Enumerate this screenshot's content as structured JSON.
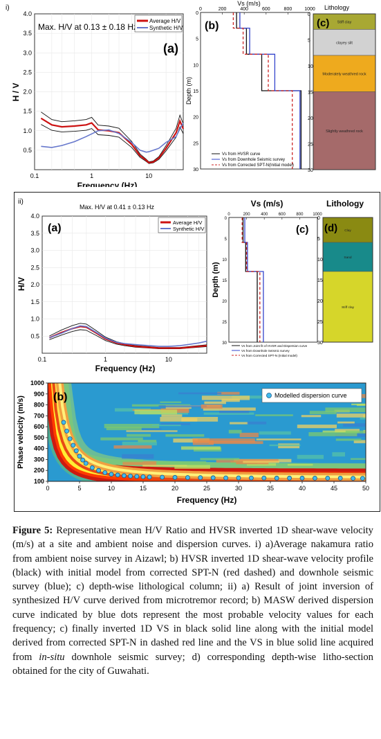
{
  "panel_i": {
    "tag": "i)",
    "hv": {
      "title": "Max. H/V at 0.13 ± 0.18 Hz",
      "letter": "(a)",
      "ylabel": "H / V",
      "xlabel": "Frequency (Hz)",
      "yticks": [
        "0.5",
        "1.0",
        "1.5",
        "2.0",
        "2.5",
        "3.0",
        "3.5",
        "4.0"
      ],
      "xticks": [
        "0.1",
        "1",
        "10"
      ],
      "legend": [
        "Average H/V",
        "Synthetic H/V"
      ]
    },
    "vs": {
      "letter": "(b)",
      "xtitle": "Vs (m/s)",
      "xticks": [
        "0",
        "200",
        "400",
        "600",
        "800",
        "1000"
      ],
      "ylabel": "Depth (m)",
      "yticks": [
        "0",
        "5",
        "10",
        "15",
        "20",
        "25",
        "30"
      ],
      "legend": [
        "Vs from HVSR curve",
        "Vs from Downhole Seismic survey",
        "Vs from Corrected SPT-N(Initial model)"
      ]
    },
    "litho": {
      "title": "Lithology",
      "letter": "(c)",
      "yticks": [
        "0",
        "5",
        "10",
        "15",
        "20",
        "25",
        "30"
      ],
      "layers": [
        {
          "label": "Stiff clay",
          "top": 0,
          "bottom": 3,
          "color": "#a8a833"
        },
        {
          "label": "clayey silt",
          "top": 3,
          "bottom": 8,
          "color": "#d2d2d2"
        },
        {
          "label": "Moderately weathred rock",
          "top": 8,
          "bottom": 15,
          "color": "#eeaa1e"
        },
        {
          "label": "Slightly weathred rock",
          "top": 15,
          "bottom": 30,
          "color": "#a56a6a"
        }
      ]
    }
  },
  "panel_ii": {
    "tag": "ii)",
    "hv": {
      "title": "Max. H/V at 0.41 ± 0.13 Hz",
      "letter": "(a)",
      "ylabel": "H/V",
      "xlabel": "Frequency (Hz)",
      "yticks": [
        "0.5",
        "1.0",
        "1.5",
        "2.0",
        "2.5",
        "3.0",
        "3.5",
        "4.0"
      ],
      "xticks": [
        "0.1",
        "1",
        "10"
      ],
      "legend": [
        "Average H/V",
        "Synthetic H/V"
      ]
    },
    "vs": {
      "letter": "(c)",
      "xtitle": "Vs (m/s)",
      "xticks": [
        "0",
        "200",
        "400",
        "600",
        "800",
        "1000"
      ],
      "ylabel": "Depth (m)",
      "yticks": [
        "0",
        "5",
        "10",
        "15",
        "20",
        "25",
        "30"
      ],
      "legend": [
        "Vs from Joint fit of HVSR and Dispersion curve",
        "Vs from Downhole Seismic survey",
        "Vs from Corrected SPT-N (Initial model)"
      ]
    },
    "litho": {
      "title": "Lithology",
      "letter": "(d)",
      "yticks": [
        "0",
        "5",
        "10",
        "15",
        "20",
        "25",
        "30"
      ],
      "layers": [
        {
          "label": "Clay",
          "top": 0,
          "bottom": 6,
          "color": "#8a8a12"
        },
        {
          "label": "Sand",
          "top": 6,
          "bottom": 13,
          "color": "#188a8a"
        },
        {
          "label": "Stiff clay",
          "top": 13,
          "bottom": 30,
          "color": "#d6d62a"
        }
      ]
    },
    "disp": {
      "letter": "(b)",
      "ylabel": "Phase velocity (m/s)",
      "xlabel": "Frequency (Hz)",
      "yticks": [
        "100",
        "200",
        "300",
        "400",
        "500",
        "600",
        "700",
        "800",
        "900",
        "1000"
      ],
      "xticks": [
        "0",
        "5",
        "10",
        "15",
        "20",
        "25",
        "30",
        "35",
        "40",
        "45",
        "50"
      ],
      "legend": "Modelled dispersion curve"
    }
  },
  "caption": {
    "label": "Figure 5:",
    "text1": " Representative mean H/V Ratio and HVSR inverted 1D shear-wave velocity (m/s) at a site and ambient noise and dispersion curves. i) a)Average nakamura ratio from ambient noise survey in Aizawl; b) HVSR inverted 1D shear-wave velocity profile (black) with initial model from corrected SPT-N (red dashed) and downhole seismic survey (blue); c) depth-wise lithological column; ii) a) Result of joint inversion of synthesized H/V curve derived from microtremor record; b) MASW derived dispersion curve indicated by blue dots represent the most probable velocity values for each frequency; c) finally inverted 1D VS in black solid line along with the initial model derived from corrected SPT-N in dashed red line and the VS in blue solid line acquired from ",
    "italic": "in-situ",
    "text2": " downhole seismic survey; d) corresponding depth-wise litho-section obtained for the city of Guwahati."
  },
  "chart_data": [
    {
      "type": "line",
      "ylabel": "H / V",
      "xlabel": "Frequency (Hz)",
      "ylim": [
        0,
        4
      ],
      "xlim": [
        0.1,
        40
      ],
      "xscale": "log",
      "series": [
        {
          "name": "Average H/V",
          "color": "#cc1111",
          "x": [
            0.13,
            0.2,
            0.3,
            0.5,
            0.8,
            1,
            1.3,
            2,
            3,
            5,
            7,
            9,
            10,
            12,
            15,
            20,
            30,
            35,
            40
          ],
          "values": [
            1.32,
            1.15,
            1.1,
            1.12,
            1.15,
            1.2,
            1.02,
            1.0,
            0.95,
            0.65,
            0.36,
            0.24,
            0.18,
            0.2,
            0.3,
            0.55,
            0.95,
            1.25,
            1.05
          ]
        },
        {
          "name": "Synthetic H/V",
          "color": "#6677cc",
          "x": [
            0.13,
            0.2,
            0.3,
            0.5,
            0.8,
            1,
            1.3,
            2,
            3,
            5,
            7,
            9,
            10,
            12,
            15,
            20,
            30,
            35,
            40
          ],
          "values": [
            0.6,
            0.57,
            0.62,
            0.72,
            0.85,
            0.92,
            1.0,
            1.02,
            0.93,
            0.7,
            0.5,
            0.45,
            0.46,
            0.5,
            0.55,
            0.7,
            0.85,
            1.05,
            1.2
          ]
        }
      ]
    },
    {
      "type": "line",
      "xlabel": "Vs (m/s)",
      "ylabel": "Depth (m)",
      "xlim": [
        0,
        1000
      ],
      "ylim": [
        30,
        0
      ],
      "series": [
        {
          "name": "Vs from HVSR curve",
          "color": "#111111",
          "steps": [
            [
              330,
              0
            ],
            [
              330,
              3
            ],
            [
              420,
              3
            ],
            [
              420,
              8
            ],
            [
              560,
              8
            ],
            [
              560,
              15
            ],
            [
              920,
              15
            ],
            [
              920,
              30
            ]
          ]
        },
        {
          "name": "Vs from Downhole Seismic survey",
          "color": "#3344cc",
          "steps": [
            [
              360,
              0
            ],
            [
              360,
              3
            ],
            [
              450,
              3
            ],
            [
              450,
              8
            ],
            [
              680,
              8
            ],
            [
              680,
              15
            ],
            [
              910,
              15
            ],
            [
              910,
              30
            ]
          ]
        },
        {
          "name": "Vs from Corrected SPT-N(Initial model)",
          "color": "#cc2222",
          "steps": [
            [
              300,
              0
            ],
            [
              300,
              3
            ],
            [
              390,
              3
            ],
            [
              390,
              8
            ],
            [
              620,
              8
            ],
            [
              620,
              15
            ],
            [
              840,
              15
            ],
            [
              840,
              30
            ]
          ]
        }
      ]
    },
    {
      "type": "line",
      "xlabel": "Frequency (Hz)",
      "ylabel": "H/V",
      "ylim": [
        0,
        4
      ],
      "xlim": [
        0.1,
        40
      ],
      "xscale": "log",
      "series": [
        {
          "name": "Average H/V",
          "color": "#cc1111",
          "x": [
            0.13,
            0.2,
            0.3,
            0.4,
            0.5,
            0.7,
            1,
            1.5,
            2,
            3,
            5,
            7,
            10,
            15,
            20,
            30,
            40
          ],
          "values": [
            0.45,
            0.6,
            0.72,
            0.78,
            0.76,
            0.6,
            0.42,
            0.3,
            0.25,
            0.2,
            0.17,
            0.15,
            0.15,
            0.15,
            0.17,
            0.2,
            0.22
          ]
        },
        {
          "name": "Synthetic H/V",
          "color": "#6677cc",
          "x": [
            0.13,
            0.2,
            0.3,
            0.4,
            0.5,
            0.7,
            1,
            1.5,
            2,
            3,
            5,
            7,
            10,
            15,
            20,
            30,
            40
          ],
          "values": [
            0.45,
            0.58,
            0.72,
            0.8,
            0.78,
            0.62,
            0.44,
            0.32,
            0.28,
            0.25,
            0.22,
            0.2,
            0.2,
            0.22,
            0.25,
            0.3,
            0.35
          ]
        }
      ]
    },
    {
      "type": "line",
      "xlabel": "Vs (m/s)",
      "ylabel": "Depth (m)",
      "xlim": [
        0,
        1000
      ],
      "ylim": [
        30,
        0
      ],
      "series": [
        {
          "name": "Vs from Joint fit of HVSR and Dispersion curve",
          "color": "#111111",
          "steps": [
            [
              160,
              0
            ],
            [
              160,
              6
            ],
            [
              190,
              6
            ],
            [
              190,
              13
            ],
            [
              320,
              13
            ],
            [
              320,
              30
            ]
          ]
        },
        {
          "name": "Vs from Downhole Seismic survey",
          "color": "#3344cc",
          "steps": [
            [
              180,
              0
            ],
            [
              180,
              6
            ],
            [
              210,
              6
            ],
            [
              210,
              13
            ],
            [
              390,
              13
            ],
            [
              390,
              30
            ]
          ]
        },
        {
          "name": "Vs from Corrected SPT-N (Initial model)",
          "color": "#cc2222",
          "steps": [
            [
              150,
              0
            ],
            [
              150,
              6
            ],
            [
              200,
              6
            ],
            [
              200,
              13
            ],
            [
              350,
              13
            ],
            [
              350,
              30
            ]
          ]
        }
      ]
    },
    {
      "type": "scatter",
      "xlabel": "Frequency (Hz)",
      "ylabel": "Phase velocity (m/s)",
      "xlim": [
        0,
        50
      ],
      "ylim": [
        100,
        1000
      ],
      "series": [
        {
          "name": "Modelled dispersion curve",
          "color": "#44bbee",
          "x": [
            2.5,
            3,
            3.5,
            4,
            4.5,
            5,
            5.5,
            6,
            7,
            8,
            9,
            10,
            11,
            12,
            13,
            14,
            15,
            16,
            18,
            20,
            22,
            24,
            26,
            28,
            30,
            32,
            34,
            36,
            38,
            40,
            42,
            44,
            46,
            48,
            49.5
          ],
          "values": [
            640,
            560,
            490,
            430,
            380,
            330,
            295,
            265,
            225,
            200,
            180,
            165,
            158,
            152,
            148,
            145,
            142,
            140,
            138,
            136,
            135,
            134,
            133,
            132,
            132,
            131,
            131,
            130,
            130,
            130,
            129,
            129,
            129,
            128,
            128
          ]
        }
      ]
    }
  ]
}
